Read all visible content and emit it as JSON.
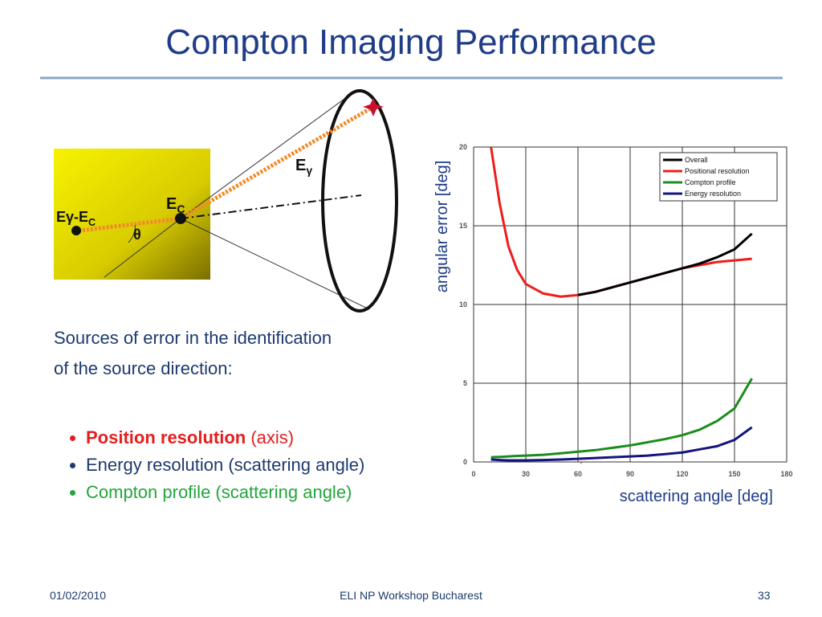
{
  "title": "Compton Imaging Performance",
  "diagram": {
    "labels": [
      {
        "text": "E",
        "sub": "γ"
      },
      {
        "text": "E",
        "sub": "C"
      },
      {
        "text": "Eγ-E",
        "sub": "C"
      },
      {
        "text": "θ"
      }
    ]
  },
  "body": {
    "intro": [
      "Sources of error in the identification",
      "of the source direction:"
    ],
    "bullets": [
      {
        "strong": "Position resolution",
        "rest": " (axis)",
        "color": "#e41e1e"
      },
      {
        "rest": "Energy resolution (scattering angle)",
        "color": "#1c3a6e"
      },
      {
        "rest": "Compton profile (scattering angle)",
        "color": "#21a63c"
      }
    ]
  },
  "chart_data": {
    "type": "line",
    "xlabel": "scattering angle [deg]",
    "ylabel": "angular error [deg]",
    "x": [
      10,
      15,
      20,
      25,
      30,
      40,
      50,
      60,
      70,
      80,
      90,
      100,
      110,
      120,
      130,
      140,
      150,
      160
    ],
    "series": [
      {
        "name": "Overall",
        "color": "#000000",
        "values": [
          null,
          null,
          null,
          null,
          null,
          null,
          null,
          10.6,
          10.8,
          11.1,
          11.4,
          11.7,
          12.0,
          12.3,
          12.6,
          13.0,
          13.5,
          14.5
        ]
      },
      {
        "name": "Positional resolution",
        "color": "#ee1c1c",
        "values": [
          20,
          16.4,
          13.7,
          12.2,
          11.3,
          10.7,
          10.5,
          10.6,
          10.8,
          11.1,
          11.4,
          11.7,
          12.0,
          12.3,
          12.5,
          12.7,
          12.8,
          12.9
        ]
      },
      {
        "name": "Compton profile",
        "color": "#1c8c1c",
        "values": [
          0.3,
          0.32,
          0.35,
          0.38,
          0.4,
          0.45,
          0.55,
          0.65,
          0.75,
          0.9,
          1.05,
          1.25,
          1.45,
          1.7,
          2.05,
          2.6,
          3.4,
          5.3
        ]
      },
      {
        "name": "Energy resolution",
        "color": "#141480",
        "values": [
          0.15,
          0.12,
          0.1,
          0.1,
          0.1,
          0.12,
          0.15,
          0.2,
          0.25,
          0.3,
          0.35,
          0.4,
          0.5,
          0.6,
          0.8,
          1.0,
          1.4,
          2.2
        ]
      }
    ],
    "xlim": [
      0,
      180
    ],
    "ylim": [
      0,
      20
    ],
    "xticks": [
      0,
      30,
      60,
      90,
      120,
      150,
      180
    ],
    "yticks": [
      0,
      5,
      10,
      15,
      20
    ],
    "grid": true
  },
  "footer": {
    "date": "01/02/2010",
    "event": "ELI NP Workshop Bucharest",
    "page": 33
  }
}
